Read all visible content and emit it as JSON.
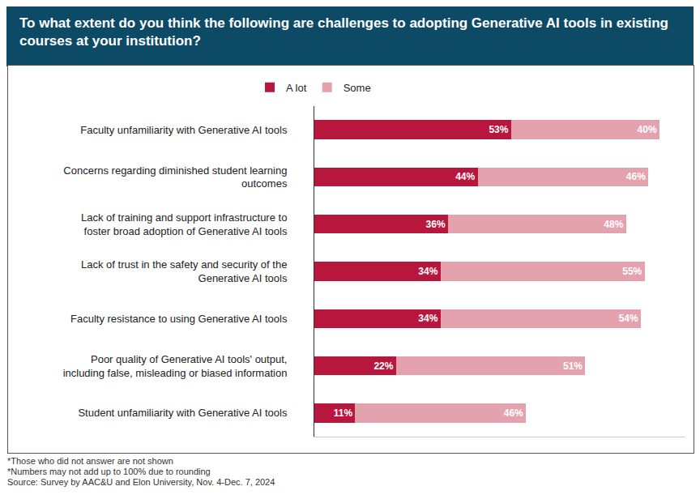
{
  "chart_data": {
    "type": "bar",
    "title": "To what extent do you think the following are challenges to adopting Generative AI tools in existing courses at your institution?",
    "orientation": "horizontal",
    "stacked": true,
    "data_labels": true,
    "tick_labels": "y",
    "grid": false,
    "legend": "top",
    "xlim": [
      0,
      100
    ],
    "categories": [
      "Faculty unfamiliarity with Generative AI tools",
      "Concerns regarding diminished student learning outcomes",
      "Lack of training and support infrastructure to foster broad adoption of Generative AI tools",
      "Lack of trust in the safety and security of the Generative AI tools",
      "Faculty resistance to using Generative AI tools",
      "Poor quality of Generative AI tools' output, including false, misleading or biased information",
      "Student unfamiliarity with Generative AI tools"
    ],
    "series": [
      {
        "name": "A lot",
        "color": "#b8173d",
        "values": [
          53,
          44,
          36,
          34,
          34,
          22,
          11
        ],
        "value_labels": [
          "53%",
          "44%",
          "36%",
          "34%",
          "34%",
          "22%",
          "11%"
        ]
      },
      {
        "name": "Some",
        "color": "#e4a2af",
        "values": [
          40,
          46,
          48,
          55,
          54,
          51,
          46
        ],
        "value_labels": [
          "40%",
          "46%",
          "48%",
          "55%",
          "54%",
          "51%",
          "46%"
        ]
      }
    ],
    "footnotes": [
      "*Those who did not answer are not shown",
      "*Numbers may not add up to 100% due to rounding",
      "Source: Survey by AAC&U and Elon University, Nov. 4-Dec. 7, 2024"
    ]
  }
}
